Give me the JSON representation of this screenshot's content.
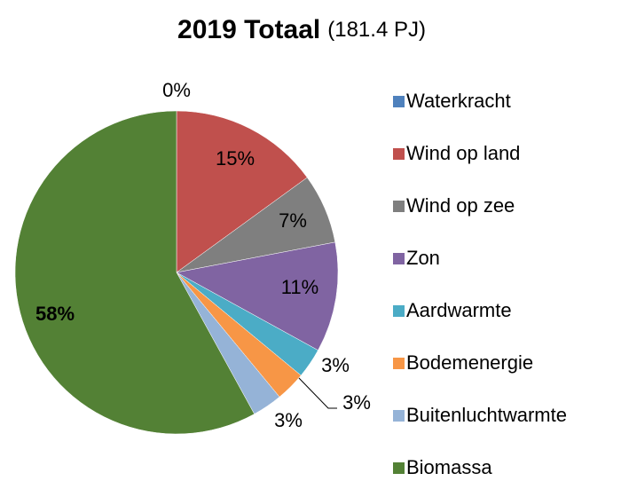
{
  "chart_data": {
    "type": "pie",
    "title": "2019 Totaal",
    "subtitle": "(181.4 PJ)",
    "categories": [
      "Waterkracht",
      "Wind op land",
      "Wind op zee",
      "Zon",
      "Aardwarmte",
      "Bodemenergie",
      "Buitenluchtwarmte",
      "Biomassa"
    ],
    "values": [
      0,
      15,
      7,
      11,
      3,
      3,
      3,
      58
    ],
    "value_labels": [
      "0%",
      "15%",
      "7%",
      "11%",
      "3%",
      "3%",
      "3%",
      "58%"
    ],
    "colors": [
      "#4f81bd",
      "#c0504d",
      "#7f7f7f",
      "#8064a2",
      "#4bacc6",
      "#f79646",
      "#95b3d7",
      "#538135"
    ]
  }
}
